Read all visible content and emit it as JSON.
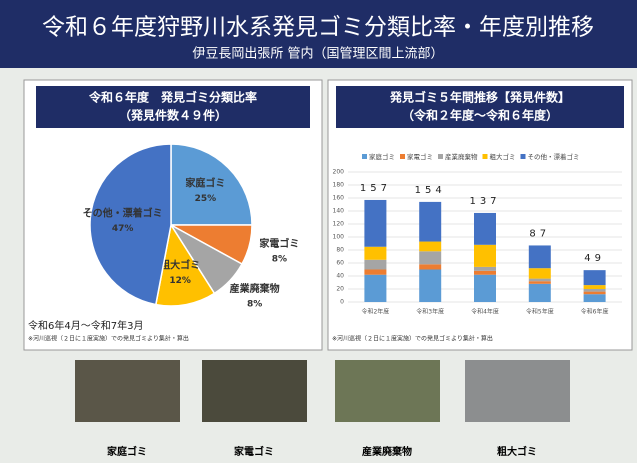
{
  "header": {
    "title": "令和６年度狩野川水系発見ゴミ分類比率・年度別推移",
    "subtitle": "伊豆長岡出張所 管内（国管理区間上流部）"
  },
  "chart_data": [
    {
      "type": "pie",
      "title": "令和６年度　発見ゴミ分類比率",
      "subtitle": "（発見件数４９件）",
      "categories": [
        "家庭ゴミ",
        "家電ゴミ",
        "産業廃棄物",
        "粗大ゴミ",
        "その他・漂着ゴミ"
      ],
      "values": [
        25,
        8,
        8,
        12,
        47
      ],
      "value_labels": [
        "25%",
        "8%",
        "8%",
        "12%",
        "47%"
      ],
      "colors": [
        "#5b9bd5",
        "#ed7d31",
        "#a5a5a5",
        "#ffc000",
        "#4472c4"
      ],
      "period": "令和6年4月～令和7年3月",
      "note": "※河川巡視（２日に１度実施）での発見ゴミより集計・算出"
    },
    {
      "type": "bar",
      "stacked": true,
      "title": "発見ゴミ５年間推移【発見件数】",
      "subtitle": "（令和２年度～令和６年度）",
      "categories": [
        "令和2年度",
        "令和3年度",
        "令和4年度",
        "令和5年度",
        "令和6年度"
      ],
      "series": [
        {
          "name": "家庭ゴミ",
          "color": "#5b9bd5",
          "values": [
            42,
            50,
            42,
            28,
            12
          ]
        },
        {
          "name": "家電ゴミ",
          "color": "#ed7d31",
          "values": [
            8,
            8,
            6,
            4,
            4
          ]
        },
        {
          "name": "産業廃棄物",
          "color": "#a5a5a5",
          "values": [
            15,
            20,
            6,
            4,
            4
          ]
        },
        {
          "name": "粗大ゴミ",
          "color": "#ffc000",
          "values": [
            20,
            15,
            34,
            16,
            6
          ]
        },
        {
          "name": "その他・漂着ゴミ",
          "color": "#4472c4",
          "values": [
            72,
            61,
            49,
            35,
            23
          ]
        }
      ],
      "totals": [
        157,
        154,
        137,
        87,
        49
      ],
      "ylim": [
        0,
        200
      ],
      "yticks": [
        0,
        20,
        40,
        60,
        80,
        100,
        120,
        140,
        160,
        180,
        200
      ],
      "grid": true,
      "note": "※河川巡視（２日に１度実施）での発見ゴミより集計・算出"
    }
  ],
  "photos": {
    "captions": [
      "家庭ゴミ",
      "家電ゴミ",
      "産業廃棄物",
      "粗大ゴミ"
    ]
  }
}
